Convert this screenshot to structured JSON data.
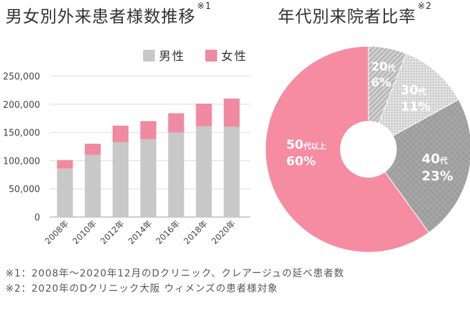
{
  "bar_title": "男女別外来患者様数推移",
  "bar_title_note": "※1",
  "pie_title": "年代別来院者比率",
  "pie_title_note": "※2",
  "footnotes": [
    "※1：2008年〜2020年12月のDクリニック、クレアージュの延べ患者数",
    "※2：2020年のDクリニック大阪 ウィメンズの患者様対象"
  ],
  "colors": {
    "male": "#c8c8c8",
    "female": "#f08aa0",
    "pie_20": "#b4b4b4",
    "pie_30": "#d2d2d2",
    "pie_40": "#a0a0a0",
    "pie_50": "#f58ca2"
  },
  "chart_data": [
    {
      "type": "bar",
      "stacked": true,
      "categories": [
        "2008年",
        "2010年",
        "2012年",
        "2014年",
        "2016年",
        "2018年",
        "2020年"
      ],
      "series": [
        {
          "name": "男性",
          "values": [
            86000,
            110000,
            133000,
            138000,
            150000,
            161000,
            160000
          ]
        },
        {
          "name": "女性",
          "values": [
            15000,
            20000,
            29000,
            32000,
            34000,
            40000,
            50000
          ]
        }
      ],
      "ylim": [
        0,
        250000
      ],
      "yticks": [
        "250,000",
        "200,000",
        "150,000",
        "100,000",
        "50,000",
        "0"
      ],
      "ytick_values": [
        250000,
        200000,
        150000,
        100000,
        50000,
        0
      ],
      "grid": true,
      "legend": "top-right"
    },
    {
      "type": "pie",
      "donut": true,
      "slices": [
        {
          "label": "20代",
          "value": 6,
          "value_label": "6%"
        },
        {
          "label": "30代",
          "value": 11,
          "value_label": "11%"
        },
        {
          "label": "40代",
          "value": 23,
          "value_label": "23%"
        },
        {
          "label": "50代以上",
          "value": 60,
          "value_label": "60%"
        }
      ]
    }
  ]
}
